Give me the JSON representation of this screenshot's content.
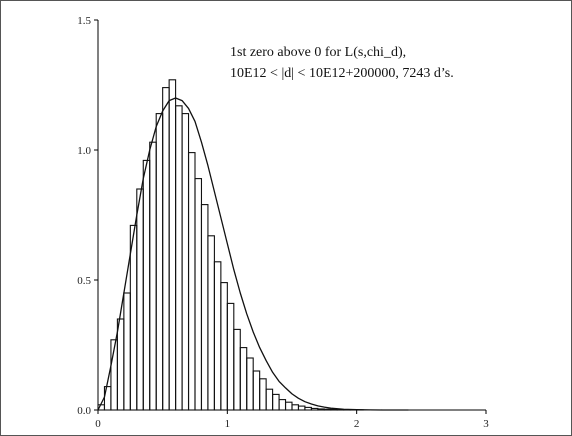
{
  "chart_data": {
    "type": "histogram",
    "title_lines": [
      "1st zero above 0 for L(s,chi_d),",
      "10E12 < |d| < 10E12+200000, 7243 d’s."
    ],
    "xlim": [
      0,
      3
    ],
    "ylim": [
      0,
      1.5
    ],
    "x_ticks": [
      "0",
      "1",
      "2",
      "3"
    ],
    "y_ticks": [
      "0.0",
      "0.5",
      "1.0",
      "1.5"
    ],
    "x_tick_values": [
      0,
      1,
      2,
      3
    ],
    "y_tick_values": [
      0,
      0.5,
      1,
      1.5
    ],
    "grid": false,
    "bin_width": 0.05,
    "histogram": {
      "bin_edges": [
        0,
        0.05,
        0.1,
        0.15,
        0.2,
        0.25,
        0.3,
        0.35,
        0.4,
        0.45,
        0.5,
        0.55,
        0.6,
        0.65,
        0.7,
        0.75,
        0.8,
        0.85,
        0.9,
        0.95,
        1.0,
        1.05,
        1.1,
        1.15,
        1.2,
        1.25,
        1.3,
        1.35,
        1.4,
        1.45,
        1.5,
        1.55,
        1.6,
        1.65,
        1.7,
        1.75,
        1.8,
        1.85,
        1.9,
        1.95,
        2.0,
        2.05,
        2.1,
        2.15,
        2.2
      ],
      "values": [
        0.02,
        0.09,
        0.27,
        0.35,
        0.45,
        0.71,
        0.85,
        0.96,
        1.03,
        1.14,
        1.24,
        1.27,
        1.17,
        1.14,
        0.99,
        0.89,
        0.79,
        0.67,
        0.57,
        0.49,
        0.41,
        0.31,
        0.24,
        0.2,
        0.15,
        0.12,
        0.08,
        0.06,
        0.04,
        0.03,
        0.02,
        0.015,
        0.01,
        0.006,
        0.004,
        0.003,
        0.002,
        0.001,
        0.001,
        0.0005,
        0.0005,
        0,
        0,
        0
      ]
    },
    "curve": {
      "x": [
        0,
        0.05,
        0.1,
        0.15,
        0.2,
        0.25,
        0.3,
        0.35,
        0.4,
        0.45,
        0.5,
        0.55,
        0.6,
        0.65,
        0.7,
        0.75,
        0.8,
        0.85,
        0.9,
        0.95,
        1.0,
        1.05,
        1.1,
        1.15,
        1.2,
        1.25,
        1.3,
        1.35,
        1.4,
        1.45,
        1.5,
        1.55,
        1.6,
        1.65,
        1.7,
        1.75,
        1.8,
        1.9,
        2.0,
        2.1,
        2.2,
        2.4
      ],
      "y": [
        0,
        0.05,
        0.17,
        0.3,
        0.45,
        0.6,
        0.75,
        0.89,
        1.0,
        1.09,
        1.15,
        1.19,
        1.2,
        1.19,
        1.16,
        1.11,
        1.03,
        0.94,
        0.84,
        0.74,
        0.64,
        0.54,
        0.45,
        0.37,
        0.3,
        0.24,
        0.19,
        0.145,
        0.11,
        0.085,
        0.062,
        0.045,
        0.032,
        0.023,
        0.016,
        0.011,
        0.007,
        0.003,
        0.0012,
        0.0004,
        0.0001,
        0
      ]
    }
  }
}
